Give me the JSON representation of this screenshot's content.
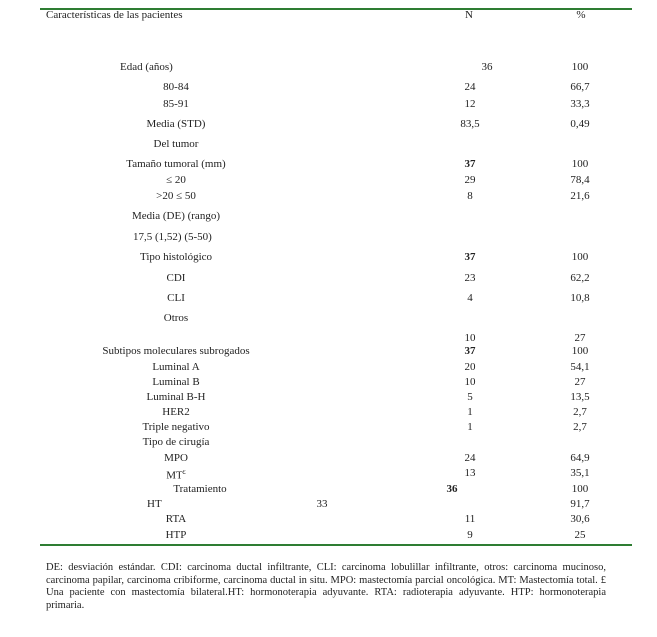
{
  "table": {
    "header": {
      "label": "Características de las pacientes",
      "n": "N",
      "pct": "%"
    },
    "rows": [
      {
        "label": "Edad (años)",
        "n": "36",
        "pct": "100"
      },
      {
        "label": "80-84",
        "n": "24",
        "pct": "66,7"
      },
      {
        "label": "85-91",
        "n": "12",
        "pct": "33,3"
      },
      {
        "label": "Media (STD)",
        "n": "83,5",
        "pct": "0,49"
      },
      {
        "label": "Del tumor",
        "n": "",
        "pct": ""
      },
      {
        "label": "Tamaño tumoral (mm)",
        "n": "37",
        "pct": "100",
        "bold_n": true
      },
      {
        "label": "≤ 20",
        "n": "29",
        "pct": "78,4"
      },
      {
        "label": ">20 ≤ 50",
        "n": "8",
        "pct": "21,6"
      },
      {
        "label": "Media (DE) (rango)",
        "n": "",
        "pct": ""
      },
      {
        "label": "17,5     (1,52)     (5-50)",
        "n": "",
        "pct": ""
      },
      {
        "label": "Tipo histológico",
        "n": "37",
        "pct": "100",
        "bold_n": true
      },
      {
        "label": "CDI",
        "n": "23",
        "pct": "62,2"
      },
      {
        "label": "CLI",
        "n": "4",
        "pct": "10,8"
      },
      {
        "label": "Otros",
        "n": "",
        "pct": ""
      },
      {
        "label": "",
        "n": "10",
        "pct": "27"
      },
      {
        "label": "Subtipos moleculares subrogados",
        "n": "37",
        "pct": "100",
        "bold_n": true
      },
      {
        "label": "Luminal A",
        "n": "20",
        "pct": "54,1"
      },
      {
        "label": "Luminal B",
        "n": "10",
        "pct": "27"
      },
      {
        "label": "Luminal B-H",
        "n": "5",
        "pct": "13,5"
      },
      {
        "label": "HER2",
        "n": "1",
        "pct": "2,7"
      },
      {
        "label": "Triple negativo",
        "n": "1",
        "pct": "2,7"
      },
      {
        "label": "Tipo de cirugía",
        "n": "",
        "pct": ""
      },
      {
        "label": "MPO",
        "n": "24",
        "pct": "64,9"
      },
      {
        "label": "MT",
        "sup": "£",
        "n": "13",
        "pct": "35,1"
      },
      {
        "label": "Tratamiento",
        "n": "36",
        "pct": "100",
        "bold_n": true
      },
      {
        "label": "HT",
        "n": "33",
        "pct": "91,7"
      },
      {
        "label": "RTA",
        "n": "11",
        "pct": "30,6"
      },
      {
        "label": "HTP",
        "n": "9",
        "pct": "25"
      }
    ]
  },
  "footnote": "DE: desviación estándar. CDI: carcinoma ductal infiltrante, CLI: carcinoma lobulillar infiltrante, otros: carcinoma mucinoso, carcinoma papilar, carcinoma cribiforme, carcinoma ductal in situ. MPO: mastectomía parcial oncológica.  MT: Mastectomía total. £ Una paciente con mastectomía bilateral.HT: hormonoterapia adyuvante. RTA: radioterapia adyuvante. HTP: hormonoterapia primaria.",
  "colors": {
    "rule": "#2e7d32"
  }
}
